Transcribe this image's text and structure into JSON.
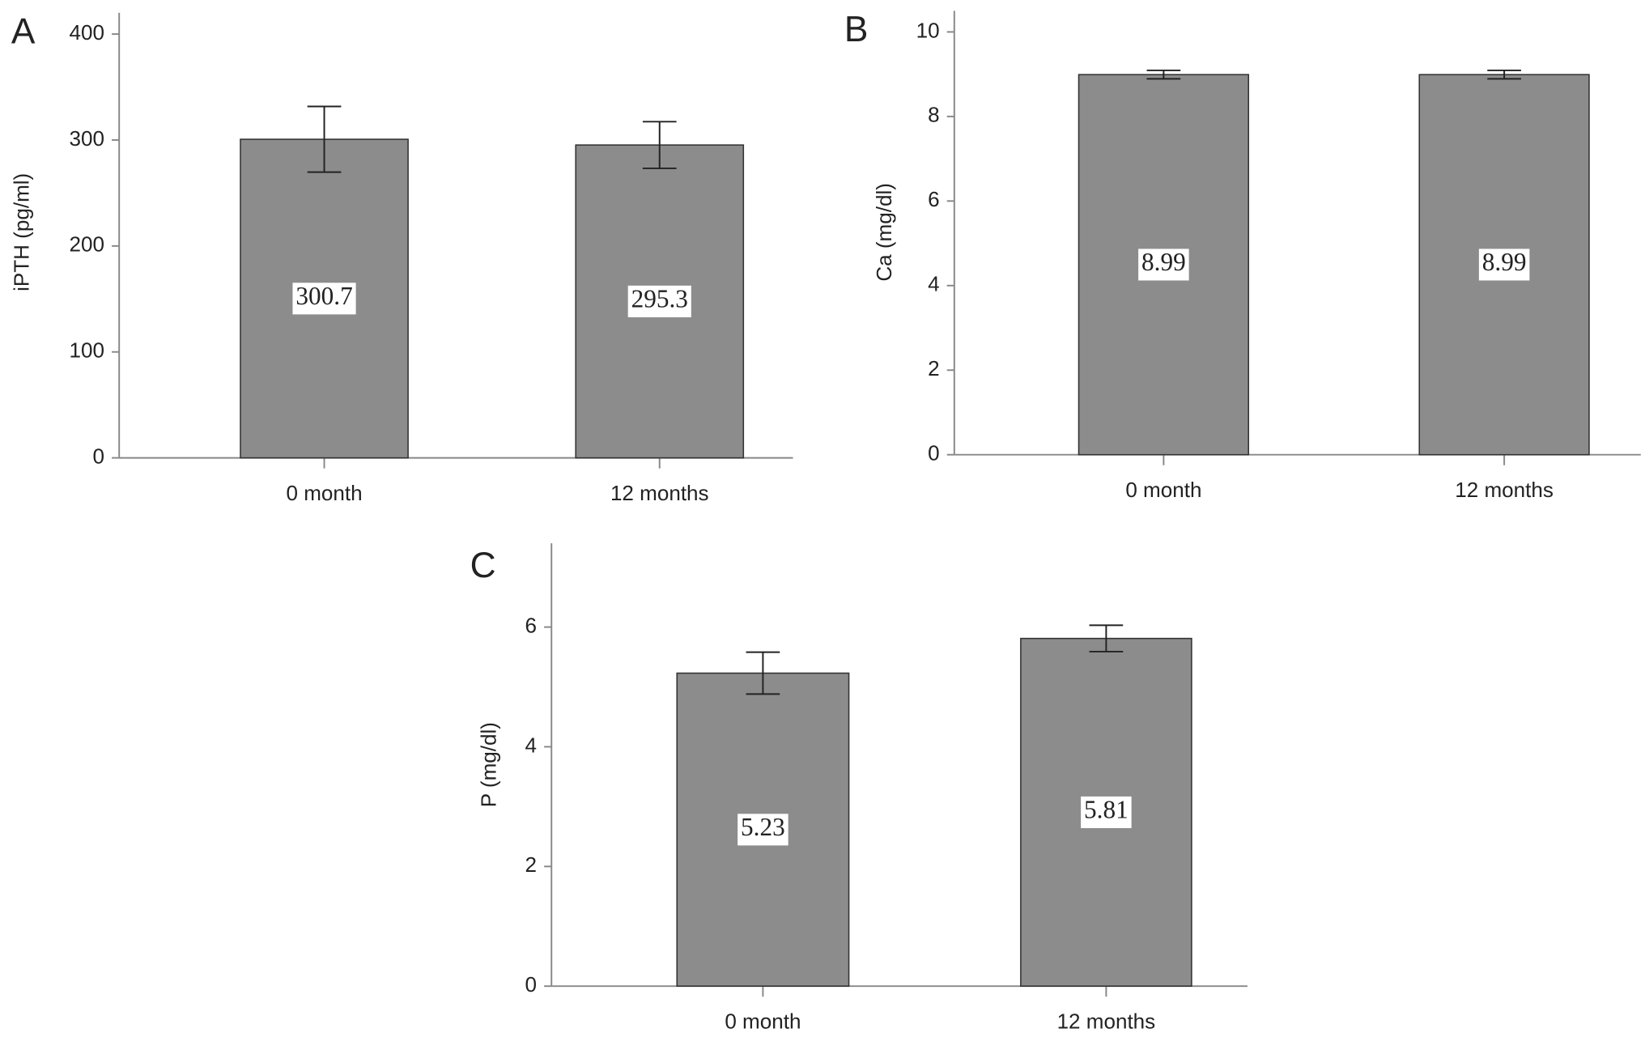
{
  "chart_data": [
    {
      "type": "bar",
      "panel_label": "A",
      "ylabel": "iPTH (pg/ml)",
      "categories": [
        "0 month",
        "12 months"
      ],
      "values": [
        300.7,
        295.3
      ],
      "errors": [
        31,
        22
      ],
      "color": "#8c8c8c",
      "ylim": [
        0,
        420
      ],
      "yticks": [
        0,
        100,
        200,
        300,
        400
      ]
    },
    {
      "type": "bar",
      "panel_label": "B",
      "ylabel": "Ca (mg/dl)",
      "categories": [
        "0 month",
        "12 months"
      ],
      "values": [
        8.99,
        8.99
      ],
      "errors": [
        0.1,
        0.1
      ],
      "color": "#8c8c8c",
      "ylim": [
        0,
        10.5
      ],
      "yticks": [
        0,
        2,
        4,
        6,
        8,
        10
      ]
    },
    {
      "type": "bar",
      "panel_label": "C",
      "ylabel": "P (mg/dl)",
      "categories": [
        "0 month",
        "12 months"
      ],
      "values": [
        5.23,
        5.81
      ],
      "errors": [
        0.35,
        0.22
      ],
      "color": "#8c8c8c",
      "ylim": [
        0,
        7.4
      ],
      "yticks": [
        0,
        2,
        4,
        6
      ]
    }
  ]
}
